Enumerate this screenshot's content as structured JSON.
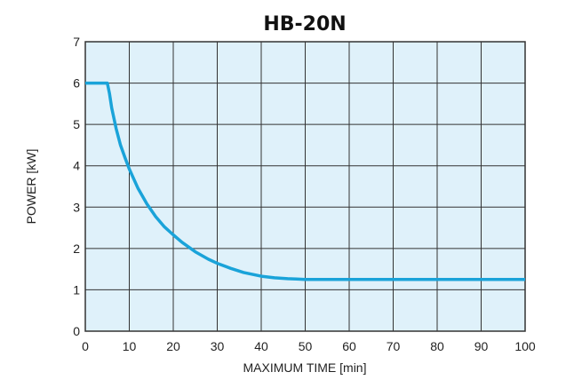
{
  "chart_data": {
    "type": "line",
    "title": "HB-20N",
    "xlabel": "MAXIMUM TIME [min]",
    "ylabel": "POWER [kW]",
    "xlim": [
      0,
      100
    ],
    "ylim": [
      0,
      7
    ],
    "x_ticks": [
      0,
      10,
      20,
      30,
      40,
      50,
      60,
      70,
      80,
      90,
      100
    ],
    "y_ticks": [
      0,
      1,
      2,
      3,
      4,
      5,
      6,
      7
    ],
    "grid": true,
    "colors": {
      "plot_background": "#dff1fa",
      "line": "#1aa3d9",
      "grid": "#333333"
    },
    "series": [
      {
        "x": [
          0,
          5,
          5.5,
          6,
          7,
          8,
          9,
          10,
          12,
          14,
          16,
          18,
          20,
          22,
          25,
          28,
          30,
          33,
          36,
          40,
          43,
          46,
          48,
          50,
          60,
          70,
          80,
          90,
          100
        ],
        "y": [
          6.0,
          6.0,
          5.75,
          5.4,
          4.9,
          4.5,
          4.2,
          3.92,
          3.45,
          3.08,
          2.77,
          2.52,
          2.33,
          2.15,
          1.92,
          1.74,
          1.64,
          1.52,
          1.42,
          1.33,
          1.29,
          1.27,
          1.26,
          1.25,
          1.25,
          1.25,
          1.25,
          1.25,
          1.25
        ]
      }
    ]
  }
}
